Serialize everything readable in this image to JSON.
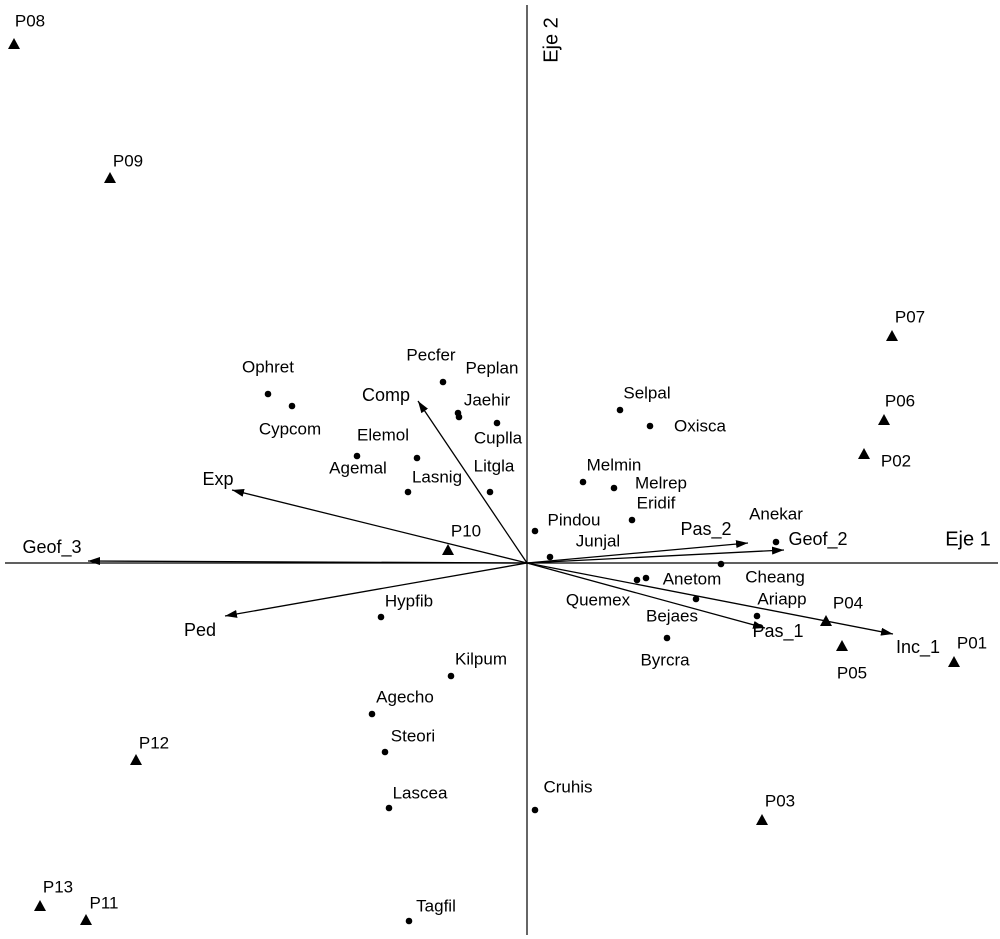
{
  "chart_data": {
    "type": "biplot",
    "x_label": "Eje 1",
    "y_label": "Eje 2",
    "xlim": [
      -5.22,
      4.71
    ],
    "ylim": [
      -3.72,
      5.58
    ],
    "color": "#000000",
    "sites": {
      "names": [
        "P08",
        "P09",
        "P07",
        "P06",
        "P02",
        "P10",
        "P04",
        "P05",
        "P01",
        "P12",
        "P03",
        "P13",
        "P11"
      ],
      "x": [
        -5.13,
        -4.17,
        3.65,
        3.57,
        3.37,
        -0.79,
        2.99,
        3.15,
        4.27,
        -3.91,
        2.35,
        -4.87,
        -4.41
      ],
      "y": [
        5.19,
        3.85,
        2.27,
        1.43,
        1.09,
        0.13,
        -0.58,
        -0.83,
        -0.99,
        -1.97,
        -2.57,
        -3.43,
        -3.57
      ]
    },
    "species": {
      "names": [
        "Ophret",
        "Cypcom",
        "Pecfer",
        "Peplan",
        "Jaehir",
        "Cuplla",
        "Elemol",
        "Agemal",
        "Lasnig",
        "Litgla",
        "Selpal",
        "Oxisca",
        "Melmin",
        "Melrep",
        "Eridif",
        "Pindou",
        "Junjal",
        "Anekar",
        "Anetom",
        "Cheang",
        "Quemex",
        "Ariapp",
        "Bejaes",
        "Byrcra",
        "Hypfib",
        "Kilpum",
        "Agecho",
        "Steori",
        "Lascea",
        "Cruhis",
        "Tagfil"
      ],
      "x": [
        -2.59,
        -2.35,
        -0.84,
        -0.69,
        -0.68,
        -0.3,
        -1.7,
        -1.1,
        -1.19,
        -0.37,
        0.93,
        1.23,
        0.56,
        0.87,
        1.05,
        0.08,
        0.23,
        2.49,
        1.19,
        1.94,
        1.1,
        2.3,
        1.69,
        1.4,
        -1.46,
        -0.76,
        -1.55,
        -1.42,
        -1.38,
        0.08,
        -1.18
      ],
      "y": [
        1.69,
        1.57,
        1.81,
        1.5,
        1.46,
        1.4,
        1.07,
        1.05,
        0.71,
        0.71,
        1.53,
        1.37,
        0.81,
        0.75,
        0.43,
        0.32,
        0.06,
        0.21,
        -0.15,
        -0.01,
        -0.17,
        -0.53,
        -0.36,
        -0.75,
        -0.54,
        -1.13,
        -1.51,
        -1.89,
        -2.45,
        -2.47,
        -3.58
      ]
    },
    "vectors": {
      "names": [
        "Geof_3",
        "Exp",
        "Ped",
        "Comp",
        "Pas_2",
        "Geof_2",
        "Pas_1",
        "Inc_1"
      ],
      "x": [
        -4.39,
        -2.95,
        -3.02,
        -1.09,
        2.21,
        2.57,
        2.38,
        3.66
      ],
      "y": [
        0.02,
        0.73,
        -0.53,
        1.62,
        0.2,
        0.13,
        -0.65,
        -0.71
      ]
    }
  }
}
